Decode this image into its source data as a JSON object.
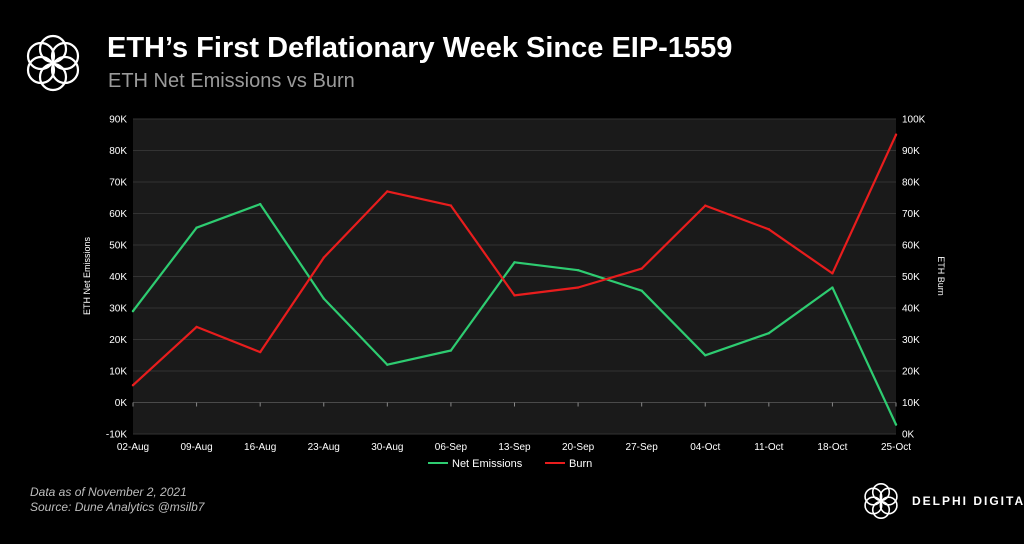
{
  "header": {
    "title": "ETH’s First Deflationary Week Since EIP-1559",
    "subtitle": "ETH Net Emissions vs Burn"
  },
  "footer": {
    "data_note": "Data as of November 2, 2021",
    "source_note": "Source: Dune Analytics @msilb7",
    "brand_name": "DELPHI DIGITAL"
  },
  "chart_data": {
    "type": "line",
    "categories": [
      "02-Aug",
      "09-Aug",
      "16-Aug",
      "23-Aug",
      "30-Aug",
      "06-Sep",
      "13-Sep",
      "20-Sep",
      "27-Sep",
      "04-Oct",
      "11-Oct",
      "18-Oct",
      "25-Oct"
    ],
    "series": [
      {
        "name": "Net Emissions",
        "axis": "left",
        "color": "#2ecc71",
        "values": [
          29000,
          55500,
          63000,
          33000,
          12000,
          16500,
          44500,
          42000,
          35500,
          15000,
          22000,
          36500,
          -7000
        ]
      },
      {
        "name": "Burn",
        "axis": "right",
        "color": "#e81d1d",
        "values": [
          15500,
          34000,
          26000,
          56000,
          77000,
          72500,
          44000,
          46500,
          52500,
          72500,
          65000,
          51000,
          95000
        ]
      }
    ],
    "ylabel_left": "ETH Net Emissions",
    "ylabel_right": "ETH Burn",
    "ylim_left": [
      -10000,
      90000
    ],
    "ylim_right": [
      0,
      100000
    ],
    "yticks_left": [
      "-10K",
      "0K",
      "10K",
      "20K",
      "30K",
      "40K",
      "50K",
      "60K",
      "70K",
      "80K",
      "90K"
    ],
    "yticks_right": [
      "0K",
      "10K",
      "20K",
      "30K",
      "40K",
      "50K",
      "60K",
      "70K",
      "80K",
      "90K",
      "100K"
    ],
    "grid": true,
    "legend_position": "bottom-center",
    "plot_background": "#1a1a1a"
  }
}
